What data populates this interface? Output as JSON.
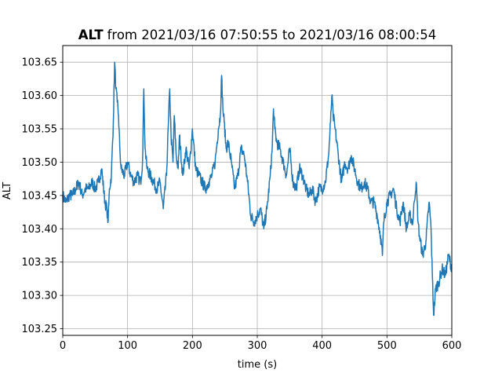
{
  "chart_data": {
    "type": "line",
    "title_bold": "ALT",
    "title_rest": "from 2021/03/16 07:50:55 to 2021/03/16 08:00:54",
    "xlabel": "time (s)",
    "ylabel": "ALT",
    "xlim": [
      0,
      600
    ],
    "ylim": [
      103.24,
      103.675
    ],
    "xticks": [
      0,
      100,
      200,
      300,
      400,
      500,
      600
    ],
    "yticks": [
      103.25,
      103.3,
      103.35,
      103.4,
      103.45,
      103.5,
      103.55,
      103.6,
      103.65
    ],
    "ytick_labels": [
      "103.25",
      "103.30",
      "103.35",
      "103.40",
      "103.45",
      "103.50",
      "103.55",
      "103.60",
      "103.65"
    ],
    "grid": true,
    "line_color": "#1f77b4",
    "series": [
      {
        "x": [
          0,
          5,
          10,
          15,
          20,
          25,
          30,
          35,
          40,
          45,
          50,
          55,
          60,
          65,
          68,
          70,
          72,
          75,
          78,
          80,
          82,
          84,
          86,
          88,
          90,
          95,
          100,
          105,
          110,
          115,
          120,
          123,
          125,
          127,
          130,
          135,
          140,
          145,
          150,
          155,
          160,
          163,
          165,
          167,
          170,
          172,
          175,
          178,
          180,
          185,
          190,
          195,
          200,
          205,
          210,
          215,
          220,
          225,
          230,
          235,
          240,
          243,
          245,
          247,
          249,
          252,
          255,
          260,
          265,
          270,
          275,
          280,
          285,
          290,
          295,
          300,
          305,
          310,
          315,
          320,
          323,
          325,
          327,
          330,
          335,
          340,
          345,
          350,
          355,
          360,
          365,
          370,
          375,
          380,
          385,
          390,
          395,
          400,
          405,
          410,
          413,
          415,
          417,
          420,
          425,
          430,
          435,
          440,
          445,
          450,
          455,
          460,
          465,
          470,
          475,
          480,
          485,
          490,
          493,
          495,
          500,
          505,
          510,
          515,
          520,
          525,
          530,
          535,
          540,
          542,
          545,
          548,
          550,
          555,
          560,
          565,
          568,
          570,
          572,
          575,
          580,
          585,
          590,
          595,
          600
        ],
        "y": [
          103.45,
          103.44,
          103.45,
          103.45,
          103.46,
          103.47,
          103.45,
          103.46,
          103.46,
          103.47,
          103.46,
          103.47,
          103.49,
          103.44,
          103.43,
          103.41,
          103.46,
          103.48,
          103.56,
          103.65,
          103.61,
          103.59,
          103.57,
          103.52,
          103.49,
          103.48,
          103.5,
          103.48,
          103.47,
          103.48,
          103.47,
          103.5,
          103.61,
          103.52,
          103.49,
          103.48,
          103.47,
          103.46,
          103.47,
          103.43,
          103.48,
          103.56,
          103.61,
          103.54,
          103.5,
          103.57,
          103.51,
          103.49,
          103.54,
          103.48,
          103.52,
          103.49,
          103.55,
          103.49,
          103.48,
          103.47,
          103.46,
          103.47,
          103.48,
          103.5,
          103.55,
          103.57,
          103.63,
          103.58,
          103.56,
          103.52,
          103.53,
          103.5,
          103.46,
          103.48,
          103.52,
          103.51,
          103.47,
          103.42,
          103.41,
          103.42,
          103.43,
          103.4,
          103.43,
          103.48,
          103.52,
          103.58,
          103.55,
          103.53,
          103.52,
          103.5,
          103.48,
          103.52,
          103.47,
          103.46,
          103.49,
          103.48,
          103.46,
          103.45,
          103.46,
          103.44,
          103.46,
          103.46,
          103.47,
          103.51,
          103.56,
          103.6,
          103.57,
          103.55,
          103.51,
          103.47,
          103.5,
          103.49,
          103.51,
          103.49,
          103.47,
          103.46,
          103.47,
          103.46,
          103.44,
          103.44,
          103.42,
          103.39,
          103.36,
          103.41,
          103.44,
          103.45,
          103.46,
          103.43,
          103.41,
          103.44,
          103.4,
          103.42,
          103.41,
          103.44,
          103.47,
          103.41,
          103.39,
          103.36,
          103.38,
          103.44,
          103.4,
          103.33,
          103.27,
          103.31,
          103.32,
          103.34,
          103.33,
          103.36,
          103.34
        ]
      }
    ]
  }
}
